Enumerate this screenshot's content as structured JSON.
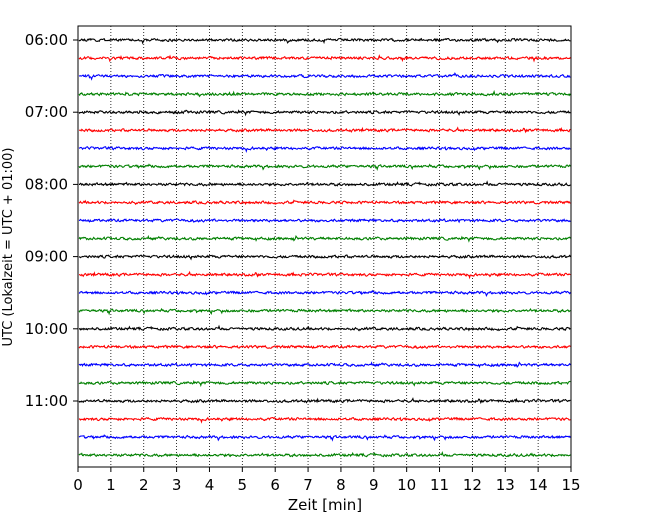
{
  "chart_data": {
    "type": "line",
    "xlabel": "Zeit  [min]",
    "ylabel": "UTC (Lokalzeit = UTC + 01:00)",
    "xlim": [
      0,
      15
    ],
    "x_ticks": [
      0,
      1,
      2,
      3,
      4,
      5,
      6,
      7,
      8,
      9,
      10,
      11,
      12,
      13,
      14,
      15
    ],
    "y_tick_labels": [
      "06:00",
      "07:00",
      "08:00",
      "09:00",
      "10:00",
      "11:00"
    ],
    "trace_start_times": [
      "06:00",
      "06:15",
      "06:30",
      "06:45",
      "07:00",
      "07:15",
      "07:30",
      "07:45",
      "08:00",
      "08:15",
      "08:30",
      "08:45",
      "09:00",
      "09:15",
      "09:30",
      "09:45",
      "10:00",
      "10:15",
      "10:30",
      "10:45",
      "11:00",
      "11:15",
      "11:30",
      "11:45"
    ],
    "trace_minutes_per_line": 15,
    "trace_colors": [
      "#000000",
      "#ff0000",
      "#0000ff",
      "#008000"
    ],
    "x_grid": "dotted",
    "legend": "none"
  }
}
